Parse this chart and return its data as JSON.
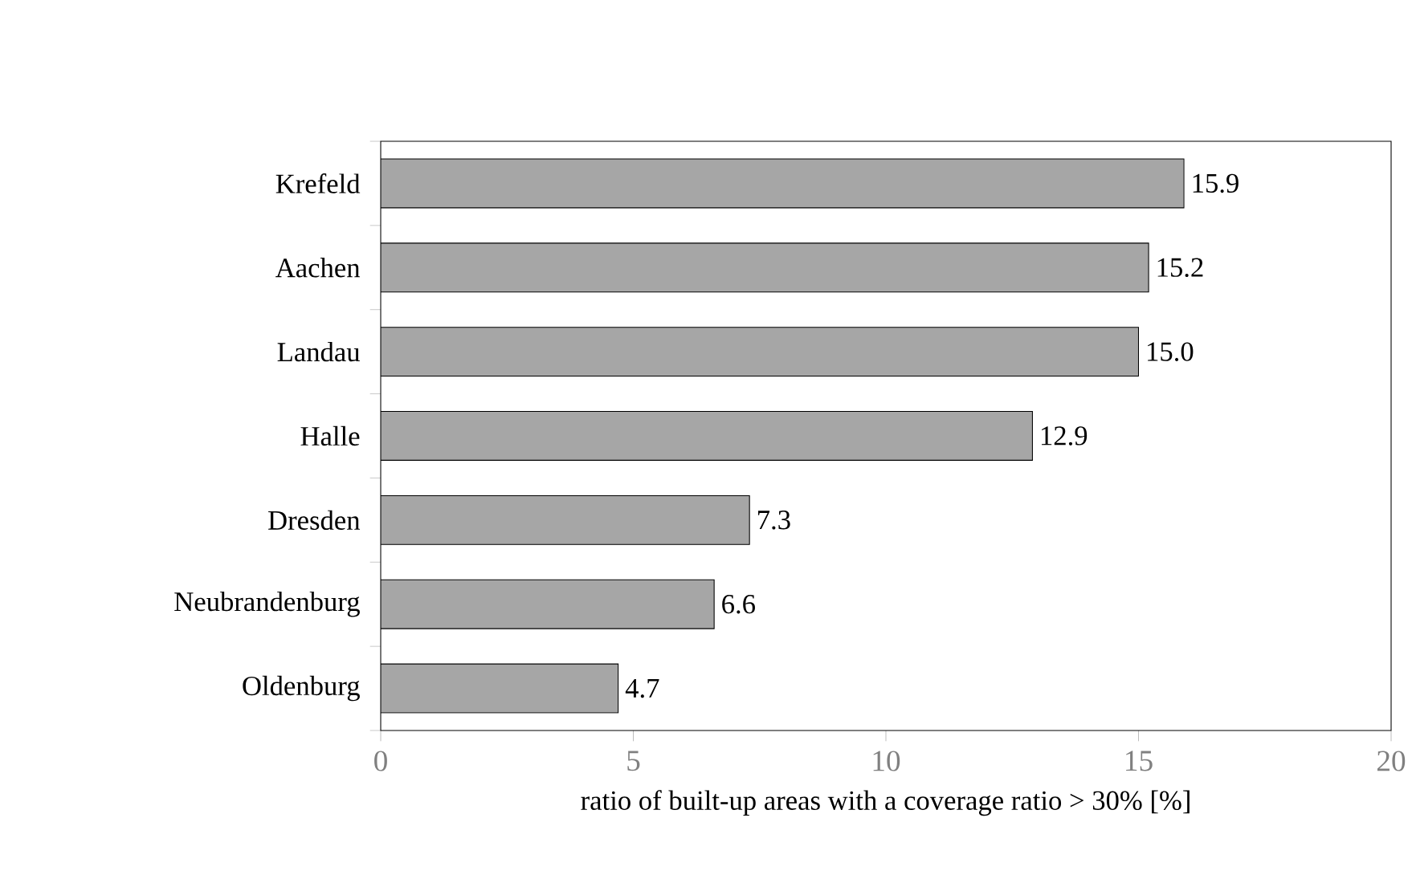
{
  "chart_data": {
    "type": "bar",
    "orientation": "horizontal",
    "xlabel": "ratio of built-up areas with a coverage ratio > 30% [%]",
    "categories": [
      "Krefeld",
      "Aachen",
      "Landau",
      "Halle",
      "Dresden",
      "Neubrandenburg",
      "Oldenburg"
    ],
    "values": [
      15.9,
      15.2,
      15.0,
      12.9,
      7.3,
      6.6,
      4.7
    ],
    "color": "#a6a6a6",
    "xlim": [
      0,
      20
    ],
    "xticks": [
      0,
      5,
      10,
      15,
      20
    ],
    "value_labels": [
      "15.9",
      "15.2",
      "15.0",
      "12.9",
      "7.3",
      "6.6",
      "4.7"
    ],
    "grid": false
  }
}
